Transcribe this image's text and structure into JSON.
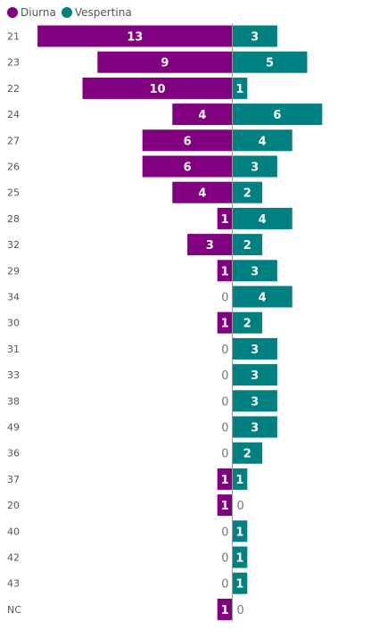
{
  "chart_data": {
    "type": "bar",
    "orientation": "horizontal-diverging",
    "categories": [
      "21",
      "23",
      "22",
      "24",
      "27",
      "26",
      "25",
      "28",
      "32",
      "29",
      "34",
      "30",
      "31",
      "33",
      "38",
      "49",
      "36",
      "37",
      "20",
      "40",
      "42",
      "43",
      "NC"
    ],
    "series": [
      {
        "name": "Diurna",
        "color": "#800080",
        "values": [
          13,
          9,
          10,
          4,
          6,
          6,
          4,
          1,
          3,
          1,
          0,
          1,
          0,
          0,
          0,
          0,
          0,
          1,
          1,
          0,
          0,
          0,
          1
        ]
      },
      {
        "name": "Vespertina",
        "color": "#008080",
        "values": [
          3,
          5,
          1,
          6,
          4,
          3,
          2,
          4,
          2,
          3,
          4,
          2,
          3,
          3,
          3,
          3,
          2,
          1,
          0,
          1,
          1,
          1,
          0
        ]
      }
    ],
    "legend_position": "top-left",
    "grid": false,
    "data_labels": true
  }
}
